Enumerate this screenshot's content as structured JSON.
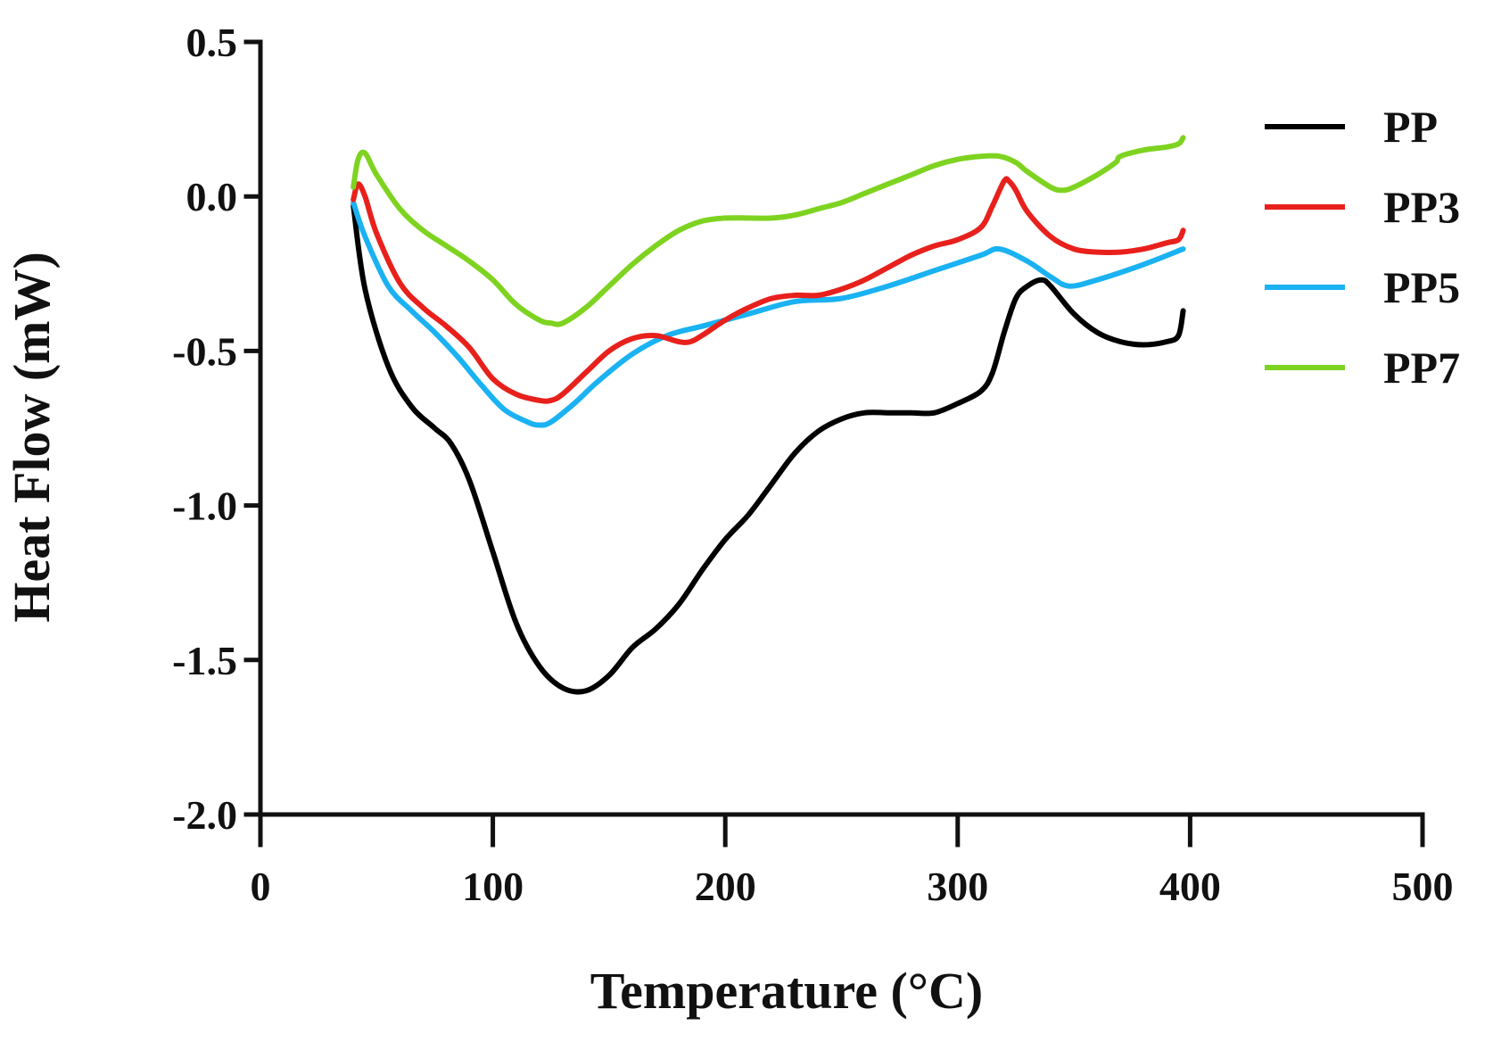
{
  "chart_data": {
    "type": "line",
    "title": "",
    "xlabel": "Temperature (°C)",
    "ylabel": "Heat Flow (mW)",
    "xlim": [
      0,
      500
    ],
    "ylim": [
      -2.0,
      0.5
    ],
    "x_ticks": [
      0,
      100,
      200,
      300,
      400,
      500
    ],
    "y_ticks": [
      0.5,
      0.0,
      -0.5,
      -1.0,
      -1.5,
      -2.0
    ],
    "x_tick_labels": [
      "0",
      "100",
      "200",
      "300",
      "400",
      "500"
    ],
    "y_tick_labels": [
      "0.5",
      "0.0",
      "-0.5",
      "-1.0",
      "-1.5",
      "-2.0"
    ],
    "grid": false,
    "legend_position": "right",
    "series": [
      {
        "name": "PP",
        "color": "#000000",
        "x": [
          40,
          45,
          55,
          65,
          75,
          82,
          90,
          100,
          110,
          120,
          130,
          140,
          150,
          160,
          170,
          180,
          190,
          200,
          210,
          220,
          230,
          240,
          250,
          260,
          270,
          280,
          290,
          300,
          310,
          315,
          320,
          325,
          330,
          336,
          340,
          350,
          360,
          370,
          380,
          390,
          395,
          397
        ],
        "y": [
          -0.03,
          -0.3,
          -0.55,
          -0.68,
          -0.75,
          -0.8,
          -0.92,
          -1.15,
          -1.38,
          -1.52,
          -1.59,
          -1.6,
          -1.55,
          -1.46,
          -1.4,
          -1.32,
          -1.21,
          -1.11,
          -1.03,
          -0.93,
          -0.83,
          -0.76,
          -0.72,
          -0.7,
          -0.7,
          -0.7,
          -0.7,
          -0.67,
          -0.63,
          -0.57,
          -0.44,
          -0.33,
          -0.29,
          -0.27,
          -0.29,
          -0.38,
          -0.44,
          -0.47,
          -0.48,
          -0.47,
          -0.45,
          -0.37
        ]
      },
      {
        "name": "PP3",
        "color": "#e8201c",
        "x": [
          40,
          42,
          45,
          50,
          60,
          70,
          80,
          90,
          100,
          110,
          120,
          125,
          130,
          140,
          150,
          160,
          170,
          180,
          185,
          190,
          200,
          210,
          220,
          230,
          240,
          250,
          260,
          270,
          280,
          290,
          300,
          310,
          315,
          320,
          322,
          325,
          330,
          340,
          350,
          360,
          370,
          380,
          390,
          395,
          397
        ],
        "y": [
          -0.01,
          0.04,
          0.0,
          -0.12,
          -0.28,
          -0.36,
          -0.42,
          -0.49,
          -0.59,
          -0.64,
          -0.66,
          -0.66,
          -0.64,
          -0.57,
          -0.5,
          -0.46,
          -0.45,
          -0.47,
          -0.47,
          -0.45,
          -0.4,
          -0.36,
          -0.33,
          -0.32,
          -0.32,
          -0.3,
          -0.27,
          -0.23,
          -0.19,
          -0.16,
          -0.14,
          -0.1,
          -0.03,
          0.05,
          0.05,
          0.02,
          -0.05,
          -0.13,
          -0.17,
          -0.18,
          -0.18,
          -0.17,
          -0.15,
          -0.14,
          -0.11
        ]
      },
      {
        "name": "PP5",
        "color": "#1ab2f2",
        "x": [
          40,
          45,
          55,
          65,
          75,
          85,
          95,
          105,
          115,
          120,
          125,
          135,
          145,
          160,
          175,
          190,
          210,
          230,
          250,
          270,
          290,
          310,
          318,
          330,
          340,
          348,
          360,
          380,
          397
        ],
        "y": [
          -0.02,
          -0.13,
          -0.29,
          -0.37,
          -0.44,
          -0.52,
          -0.61,
          -0.69,
          -0.73,
          -0.74,
          -0.73,
          -0.67,
          -0.6,
          -0.51,
          -0.45,
          -0.42,
          -0.38,
          -0.34,
          -0.33,
          -0.29,
          -0.24,
          -0.19,
          -0.17,
          -0.21,
          -0.26,
          -0.29,
          -0.27,
          -0.22,
          -0.17
        ]
      },
      {
        "name": "PP7",
        "color": "#7ed320",
        "x": [
          40,
          42,
          45,
          50,
          60,
          70,
          80,
          90,
          100,
          110,
          120,
          125,
          130,
          140,
          150,
          160,
          170,
          180,
          190,
          200,
          210,
          220,
          230,
          240,
          250,
          260,
          270,
          280,
          290,
          300,
          310,
          318,
          325,
          330,
          340,
          345,
          350,
          360,
          368,
          370,
          380,
          390,
          395,
          397
        ],
        "y": [
          0.03,
          0.12,
          0.14,
          0.07,
          -0.04,
          -0.11,
          -0.16,
          -0.21,
          -0.27,
          -0.35,
          -0.4,
          -0.41,
          -0.41,
          -0.36,
          -0.29,
          -0.22,
          -0.16,
          -0.11,
          -0.08,
          -0.07,
          -0.07,
          -0.07,
          -0.06,
          -0.04,
          -0.02,
          0.01,
          0.04,
          0.07,
          0.1,
          0.12,
          0.13,
          0.13,
          0.11,
          0.08,
          0.03,
          0.02,
          0.03,
          0.07,
          0.11,
          0.13,
          0.15,
          0.16,
          0.17,
          0.19
        ]
      }
    ]
  }
}
